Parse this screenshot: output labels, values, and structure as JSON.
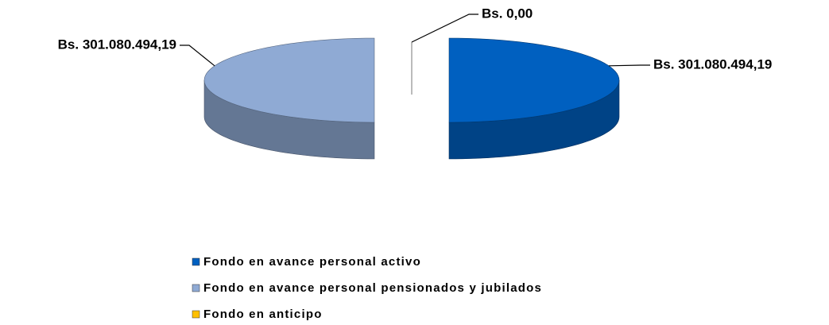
{
  "chart_data": {
    "type": "pie",
    "three_d": true,
    "categories": [
      "Fondo en avance personal activo",
      "Fondo en avance personal pensionados y jubilados",
      "Fondo en anticipo"
    ],
    "values": [
      301080494.19,
      301080494.19,
      0
    ],
    "value_labels": [
      "Bs. 301.080.494,19",
      "Bs. 301.080.494,19",
      "Bs. 0,00"
    ],
    "colors": [
      "#0060c0",
      "#8faad4",
      "#ffc000"
    ],
    "legend": "bottom"
  }
}
